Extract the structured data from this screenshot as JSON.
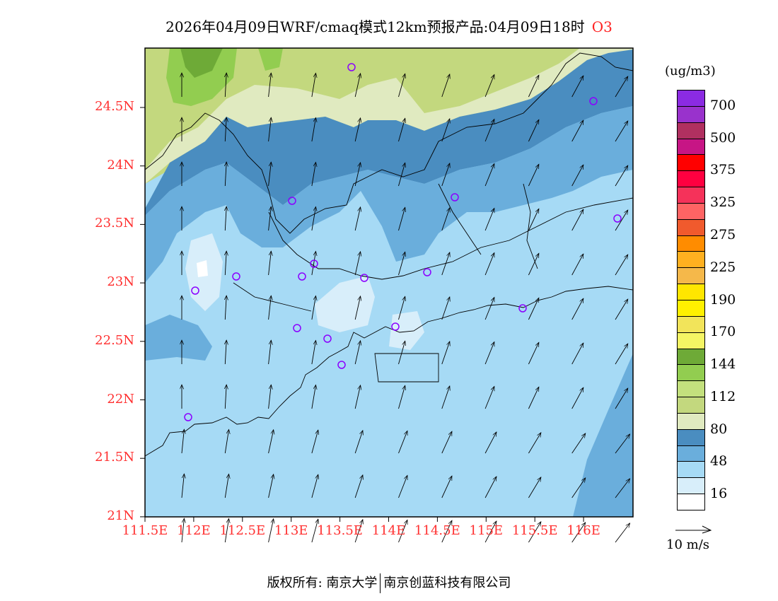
{
  "title": {
    "main": "2026年04月09日WRF/cmaq模式12km预报产品:04月09日18时",
    "species": "O3"
  },
  "axes": {
    "lat_labels": [
      "24.5N",
      "24N",
      "23.5N",
      "23N",
      "22.5N",
      "22N",
      "21.5N",
      "21N"
    ],
    "lon_labels": [
      "111.5E",
      "112E",
      "112.5E",
      "113E",
      "113.5E",
      "114E",
      "114.5E",
      "115E",
      "115.5E",
      "116E"
    ],
    "lon_range": [
      111.5,
      116.5
    ],
    "lat_range": [
      21,
      25
    ]
  },
  "legend": {
    "unit": "(ug/m3)",
    "colors": [
      "#8B2BE2",
      "#9932CC",
      "#B03060",
      "#C71585",
      "#FF0000",
      "#FF0040",
      "#F5325A",
      "#FF6464",
      "#F05A2D",
      "#FF8C00",
      "#FFB020",
      "#F5B84A",
      "#FFE600",
      "#FFF000",
      "#F2E45A",
      "#F5F564",
      "#6EAA37",
      "#92CD50",
      "#C3E07D",
      "#C3D87E",
      "#E0EAC0",
      "#4A8DC0",
      "#6AAEDC",
      "#A6DAF5",
      "#D8EEFA",
      "#FFFFFF"
    ],
    "labels": [
      "700",
      "500",
      "375",
      "325",
      "275",
      "225",
      "190",
      "170",
      "144",
      "112",
      "80",
      "48",
      "16"
    ],
    "vector_label": "10 m/s"
  },
  "footer": {
    "left": "版权所有: 南京大学",
    "right": "南京创蓝科技有限公司"
  }
}
